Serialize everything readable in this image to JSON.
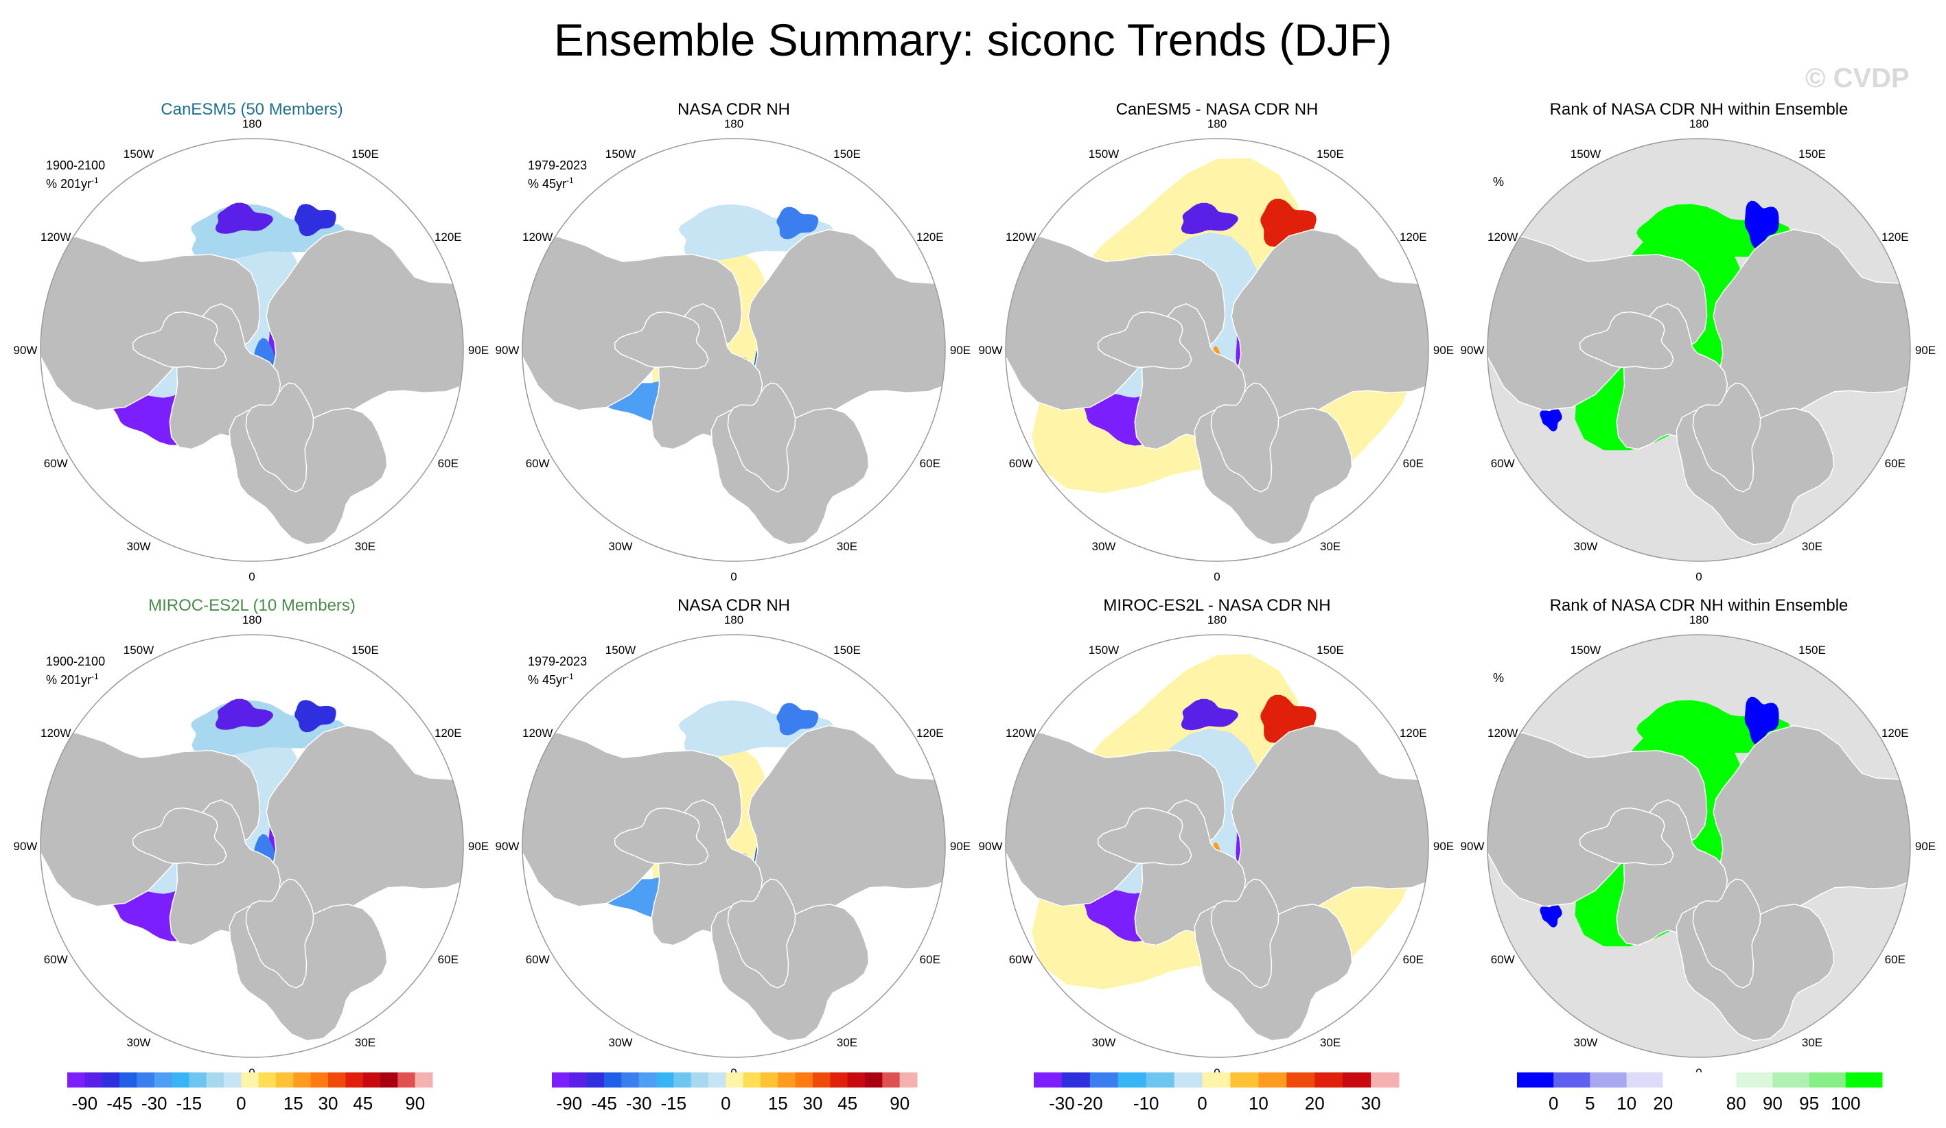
{
  "title": "Ensemble Summary: siconc Trends (DJF)",
  "watermark": "© CVDP",
  "panels": [
    {
      "title": "CanESM5 (50 Members)",
      "title_color": "#1f6e8c",
      "period": "1900-2100",
      "trend_prefix": "% 201yr",
      "trend_sup": "-1",
      "kind": "trend-ens"
    },
    {
      "title": "NASA CDR NH",
      "title_color": "#000000",
      "period": "1979-2023",
      "trend_prefix": "% 45yr",
      "trend_sup": "-1",
      "kind": "trend-obs"
    },
    {
      "title": "CanESM5 - NASA CDR NH",
      "title_color": "#000000",
      "kind": "diff"
    },
    {
      "title": "Rank of NASA CDR NH within Ensemble",
      "title_color": "#000000",
      "unit": "%",
      "kind": "rank"
    },
    {
      "title": "MIROC-ES2L (10 Members)",
      "title_color": "#4a8a4a",
      "period": "1900-2100",
      "trend_prefix": "% 201yr",
      "trend_sup": "-1",
      "kind": "trend-ens"
    },
    {
      "title": "NASA CDR NH",
      "title_color": "#000000",
      "period": "1979-2023",
      "trend_prefix": "% 45yr",
      "trend_sup": "-1",
      "kind": "trend-obs"
    },
    {
      "title": "MIROC-ES2L - NASA CDR NH",
      "title_color": "#000000",
      "kind": "diff"
    },
    {
      "title": "Rank of NASA CDR NH within Ensemble",
      "title_color": "#000000",
      "unit": "%",
      "kind": "rank"
    }
  ],
  "lon_labels": [
    "180",
    "150E",
    "120E",
    "90E",
    "60E",
    "30E",
    "0",
    "30W",
    "60W",
    "90W",
    "120W",
    "150W"
  ],
  "colors": {
    "land": "#bdbdbd",
    "ocean": "#ffffff",
    "rank_background": "#e0e0e0",
    "outline": "#9a9a9a"
  },
  "chart_data": [
    {
      "type": "colorbar",
      "name": "trend colorbar",
      "colors": [
        "#7b1fff",
        "#5a20e8",
        "#2f2fe0",
        "#2060e8",
        "#3a7ef0",
        "#4d9ef5",
        "#36b4f5",
        "#6cc6f0",
        "#a8d8f0",
        "#c6e4f4",
        "#fff4a8",
        "#ffdd55",
        "#ffc235",
        "#ff9c20",
        "#ff7a10",
        "#f04a0a",
        "#e0200a",
        "#c80a10",
        "#a80010",
        "#e05050",
        "#f5b0b0"
      ],
      "tick_values": [
        -90,
        -45,
        -30,
        -15,
        0,
        15,
        30,
        45,
        90
      ],
      "tick_labels": [
        "-90",
        "-45",
        "-30",
        "-15",
        "0",
        "15",
        "30",
        "45",
        "90"
      ],
      "tick_positions": [
        1,
        3,
        5,
        7,
        10,
        13,
        15,
        17,
        20
      ]
    },
    {
      "type": "colorbar",
      "name": "difference colorbar",
      "colors": [
        "#7b1fff",
        "#2f2fe0",
        "#3a7ef0",
        "#36b4f5",
        "#6cc6f0",
        "#c6e4f4",
        "#fff4a8",
        "#ffc235",
        "#ff9c20",
        "#f04a0a",
        "#e0200a",
        "#c80a10",
        "#f5b0b0"
      ],
      "tick_values": [
        -30,
        -20,
        -10,
        0,
        10,
        20,
        30
      ],
      "tick_labels": [
        "-30",
        "-20",
        "-10",
        "0",
        "10",
        "20",
        "30"
      ],
      "tick_positions": [
        1,
        2,
        4,
        6,
        8,
        10,
        12
      ]
    },
    {
      "type": "colorbar",
      "name": "rank colorbar",
      "colors": [
        "#0000ff",
        "#6060f0",
        "#a8a8f0",
        "#dcdcf8",
        "#ffffff",
        "#ffffff",
        "#dcf8dc",
        "#b0f0b0",
        "#86f086",
        "#00ff00"
      ],
      "tick_values": [
        0,
        5,
        10,
        20,
        80,
        90,
        95,
        100
      ],
      "tick_labels": [
        "0",
        "5",
        "10",
        "20",
        "80",
        "90",
        "95",
        "100"
      ],
      "tick_positions": [
        1,
        2,
        3,
        4,
        6,
        7,
        8,
        9
      ]
    }
  ]
}
